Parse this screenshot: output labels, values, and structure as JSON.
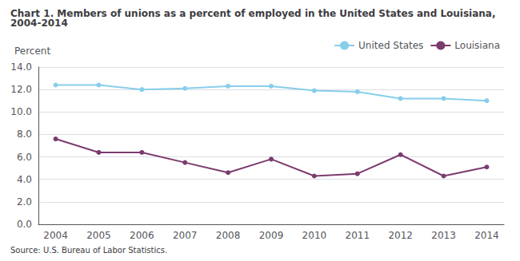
{
  "chart_data": {
    "type": "line",
    "title": "Chart 1. Members of unions as a percent of employed in the United States and Louisiana, 2004-2014",
    "ylabel": "Percent",
    "annotations": [
      "Source: U.S. Bureau of Labor Statistics."
    ],
    "x": [
      2004,
      2005,
      2006,
      2007,
      2008,
      2009,
      2010,
      2011,
      2012,
      2013,
      2014
    ],
    "series": [
      {
        "name": "United States",
        "color": "#87CEEB",
        "marker": "circle",
        "line_style": "solid",
        "values": [
          12.4,
          12.4,
          12.0,
          12.1,
          12.3,
          12.3,
          11.9,
          11.8,
          11.2,
          11.2,
          11.0
        ]
      },
      {
        "name": "Louisiana",
        "color": "#7B3B6E",
        "marker": "circle",
        "line_style": "solid",
        "values": [
          7.6,
          6.4,
          6.4,
          5.5,
          4.6,
          5.8,
          4.3,
          4.5,
          6.2,
          4.3,
          5.1
        ]
      }
    ],
    "xlim": [
      2003.6,
      2014.4
    ],
    "xticks": [
      2004,
      2005,
      2006,
      2007,
      2008,
      2009,
      2010,
      2011,
      2012,
      2013,
      2014
    ],
    "ylim": [
      0.0,
      14.0
    ],
    "yticks": [
      {
        "value": 0,
        "label": "0.0"
      },
      {
        "value": 2,
        "label": "2.0"
      },
      {
        "value": 4,
        "label": "4.0"
      },
      {
        "value": 6,
        "label": "6.0"
      },
      {
        "value": 8,
        "label": "8.0"
      },
      {
        "value": 10,
        "label": "10.0"
      },
      {
        "value": 12,
        "label": "12.0"
      },
      {
        "value": 14,
        "label": "14.0"
      }
    ],
    "grid": true,
    "legend": "top right"
  }
}
